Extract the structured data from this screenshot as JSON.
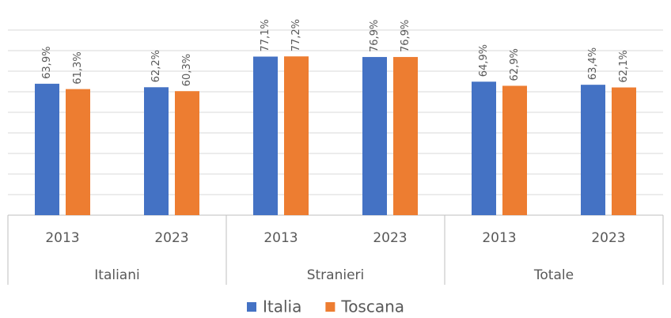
{
  "chart_data": {
    "type": "bar",
    "categories": [
      "2013",
      "2023",
      "2013",
      "2023",
      "2013",
      "2023"
    ],
    "group_labels": [
      "Italiani",
      "Stranieri",
      "Totale"
    ],
    "series": [
      {
        "name": "Italia",
        "color": "#4472c4",
        "values": [
          63.9,
          62.2,
          77.1,
          76.9,
          64.9,
          63.4
        ],
        "value_labels": [
          "63,9%",
          "62,2%",
          "77,1%",
          "76,9%",
          "64,9%",
          "63,4%"
        ]
      },
      {
        "name": "Toscana",
        "color": "#ed7d31",
        "values": [
          61.3,
          60.3,
          77.2,
          76.9,
          62.9,
          62.1
        ],
        "value_labels": [
          "61,3%",
          "60,3%",
          "77,2%",
          "76,9%",
          "62,9%",
          "62,1%"
        ]
      }
    ],
    "ylim": [
      0,
      90
    ],
    "yticks": [
      0,
      10,
      20,
      30,
      40,
      50,
      60,
      70,
      80,
      90
    ],
    "grid": true,
    "legend": "bottom"
  }
}
